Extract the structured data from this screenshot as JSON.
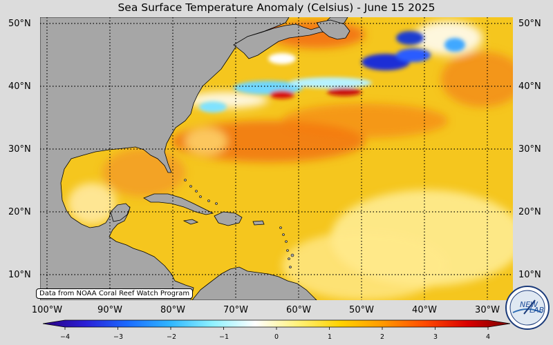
{
  "title": "Sea Surface Temperature Anomaly (Celsius) - June 15 2025",
  "map": {
    "latitude_labels": [
      "50°N",
      "40°N",
      "30°N",
      "20°N",
      "10°N"
    ],
    "longitude_labels": [
      "100°W",
      "90°W",
      "80°W",
      "70°W",
      "60°W",
      "50°W",
      "40°W",
      "30°W"
    ],
    "credit": "Data from NOAA Coral Reef Watch Program",
    "land_color": "#a6a6a6",
    "gridline_style": "dotted black"
  },
  "colorbar": {
    "min": -4,
    "max": 4,
    "ticks": [
      "−4",
      "−3",
      "−2",
      "−1",
      "0",
      "1",
      "2",
      "3",
      "4"
    ],
    "colors": [
      "#2a0080",
      "#2a1fd6",
      "#1a6bff",
      "#2fb6ff",
      "#8ff2ff",
      "#ffffff",
      "#fff27a",
      "#ffd200",
      "#ff9900",
      "#ff4a00",
      "#d90000",
      "#7a0000"
    ]
  },
  "logo": {
    "text_1": "NEW",
    "text_2": "LAB"
  }
}
